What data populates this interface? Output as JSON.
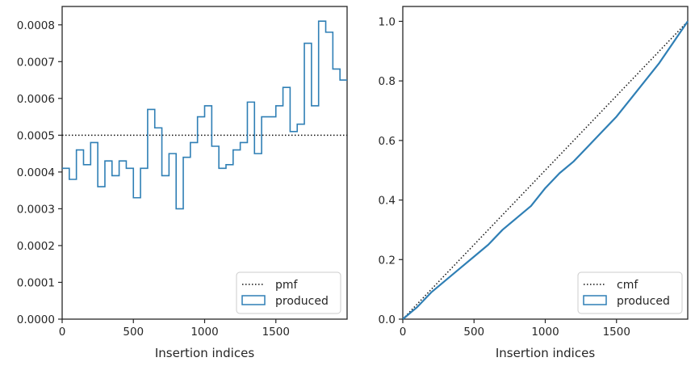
{
  "colors": {
    "series": "#2f7fb5",
    "reference": "#111111",
    "axis": "#262626",
    "legend_border": "#cccccc"
  },
  "chart_data": [
    {
      "id": "left",
      "type": "histogram-step",
      "title": "",
      "xlabel": "Insertion indices",
      "ylabel": "",
      "xlim": [
        0,
        2000
      ],
      "ylim": [
        0,
        0.00085
      ],
      "xticks": [
        0,
        500,
        1000,
        1500
      ],
      "xtick_labels": [
        "0",
        "500",
        "1000",
        "1500"
      ],
      "yticks": [
        0,
        0.0001,
        0.0002,
        0.0003,
        0.0004,
        0.0005,
        0.0006,
        0.0007,
        0.0008
      ],
      "ytick_labels": [
        "0.0000",
        "0.0001",
        "0.0002",
        "0.0003",
        "0.0004",
        "0.0005",
        "0.0006",
        "0.0007",
        "0.0008"
      ],
      "grid": false,
      "legend_position": "lower-right",
      "reference": {
        "name": "pmf",
        "style": "dotted",
        "value": 0.0005
      },
      "series": [
        {
          "name": "produced",
          "bin_width": 50,
          "bin_start": 0,
          "values": [
            0.00041,
            0.00038,
            0.00046,
            0.00042,
            0.00048,
            0.00036,
            0.00043,
            0.00039,
            0.00043,
            0.00041,
            0.00033,
            0.00041,
            0.00057,
            0.00052,
            0.00039,
            0.00045,
            0.0003,
            0.00044,
            0.00048,
            0.00055,
            0.00058,
            0.00047,
            0.00041,
            0.00042,
            0.00046,
            0.00048,
            0.00059,
            0.00045,
            0.00055,
            0.00055,
            0.00058,
            0.00063,
            0.00051,
            0.00053,
            0.00075,
            0.00058,
            0.00081,
            0.00078,
            0.00068,
            0.00065
          ]
        }
      ]
    },
    {
      "id": "right",
      "type": "line",
      "title": "",
      "xlabel": "Insertion indices",
      "ylabel": "",
      "xlim": [
        0,
        2000
      ],
      "ylim": [
        0,
        1.05
      ],
      "xticks": [
        0,
        500,
        1000,
        1500
      ],
      "xtick_labels": [
        "0",
        "500",
        "1000",
        "1500"
      ],
      "yticks": [
        0,
        0.2,
        0.4,
        0.6,
        0.8,
        1.0
      ],
      "ytick_labels": [
        "0.0",
        "0.2",
        "0.4",
        "0.6",
        "0.8",
        "1.0"
      ],
      "grid": false,
      "legend_position": "lower-right",
      "reference": {
        "name": "cmf",
        "style": "dotted",
        "x": [
          0,
          2000
        ],
        "y": [
          0,
          1.0
        ]
      },
      "series": [
        {
          "name": "produced",
          "x": [
            0,
            100,
            200,
            300,
            400,
            500,
            600,
            700,
            800,
            900,
            1000,
            1100,
            1200,
            1300,
            1400,
            1500,
            1600,
            1700,
            1800,
            1900,
            2000
          ],
          "y": [
            0,
            0.04,
            0.09,
            0.13,
            0.17,
            0.21,
            0.25,
            0.3,
            0.34,
            0.38,
            0.44,
            0.49,
            0.53,
            0.58,
            0.63,
            0.68,
            0.74,
            0.8,
            0.86,
            0.93,
            1.0
          ]
        }
      ]
    }
  ]
}
